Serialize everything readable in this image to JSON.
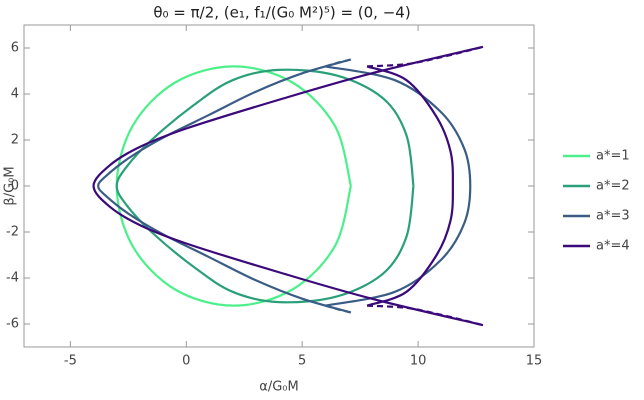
{
  "chart_data": {
    "type": "line",
    "title": "θ₀ = π/2, (e₁, f₁/(G₀ M²)⁵) = (0, −4)",
    "x_label": "α/G₀M",
    "y_label": "β/G₀M",
    "xlim": [
      -7,
      15
    ],
    "ylim": [
      -7,
      7
    ],
    "xticks": [
      -5,
      0,
      5,
      10,
      15
    ],
    "yticks": [
      -6,
      -4,
      -2,
      0,
      2,
      4,
      6
    ],
    "grid": false,
    "legend": "right",
    "series": [
      {
        "name": "a*=1",
        "color": "#4cf08a",
        "x": [
          7.1,
          6.42,
          4.58,
          2.05,
          -0.48,
          -2.32,
          -3.0,
          -2.32,
          -0.48,
          2.05,
          4.58,
          6.42,
          7.1
        ],
        "y": [
          0,
          2.6,
          4.5,
          5.2,
          4.5,
          2.6,
          0,
          -2.6,
          -4.5,
          -5.2,
          -4.5,
          -2.6,
          0
        ]
      },
      {
        "name": "a*=2",
        "color": "#2aa07a",
        "x": [
          9.8,
          9.5,
          8.5,
          6.5,
          4.0,
          2.0,
          0.3,
          -1.5,
          -2.6,
          -3.0,
          -2.6,
          -1.5,
          0.3,
          2.0,
          4.0,
          6.5,
          8.5,
          9.5,
          9.8
        ],
        "y": [
          0,
          2.2,
          3.8,
          4.8,
          5.05,
          4.6,
          3.5,
          2.0,
          0.8,
          0,
          -0.8,
          -2.0,
          -3.5,
          -4.6,
          -5.05,
          -4.8,
          -3.8,
          -2.2,
          0
        ]
      },
      {
        "name": "a*=3",
        "color": "#3a5d86",
        "x": [
          7.1,
          5,
          3,
          1,
          -1,
          -2.5,
          -3.5,
          -3.8,
          -3.5,
          -2.5,
          -1,
          1,
          3,
          5,
          7.1,
          null,
          6.0,
          9,
          11,
          12,
          12.25,
          12,
          11,
          9,
          6.0
        ],
        "y": [
          5.5,
          4.9,
          4.1,
          3.1,
          2.1,
          1.2,
          0.4,
          0,
          -0.4,
          -1.2,
          -2.1,
          -3.1,
          -4.1,
          -4.9,
          -5.5,
          null,
          5.2,
          4.6,
          3.2,
          1.6,
          0,
          -1.6,
          -3.2,
          -4.6,
          -5.2
        ],
        "dashed_x": [
          6.0,
          6.5,
          7.1,
          null,
          6.0,
          6.5,
          7.1
        ],
        "dashed_y": [
          5.2,
          5.35,
          5.5,
          null,
          -5.2,
          -5.35,
          -5.5
        ]
      },
      {
        "name": "a*=4",
        "color": "#3b0a7a",
        "x": [
          12.8,
          8,
          4,
          0,
          -2,
          -3.3,
          -4,
          -3.3,
          -2,
          0,
          4,
          8,
          12.8,
          null,
          7.8,
          9.5,
          10.8,
          11.4,
          11.5,
          11.4,
          10.8,
          9.5,
          7.8
        ],
        "y": [
          6.05,
          4.9,
          3.75,
          2.5,
          1.7,
          0.9,
          0,
          -0.9,
          -1.7,
          -2.5,
          -3.75,
          -4.9,
          -6.05,
          null,
          5.2,
          4.6,
          3.0,
          1.5,
          0,
          -1.5,
          -3.0,
          -4.6,
          -5.2
        ],
        "dashed_x": [
          7.8,
          9.5,
          11,
          12.8,
          null,
          7.8,
          9.5,
          11,
          12.8
        ],
        "dashed_y": [
          5.2,
          5.3,
          5.6,
          6.05,
          null,
          -5.2,
          -5.3,
          -5.6,
          -6.05
        ]
      }
    ]
  }
}
